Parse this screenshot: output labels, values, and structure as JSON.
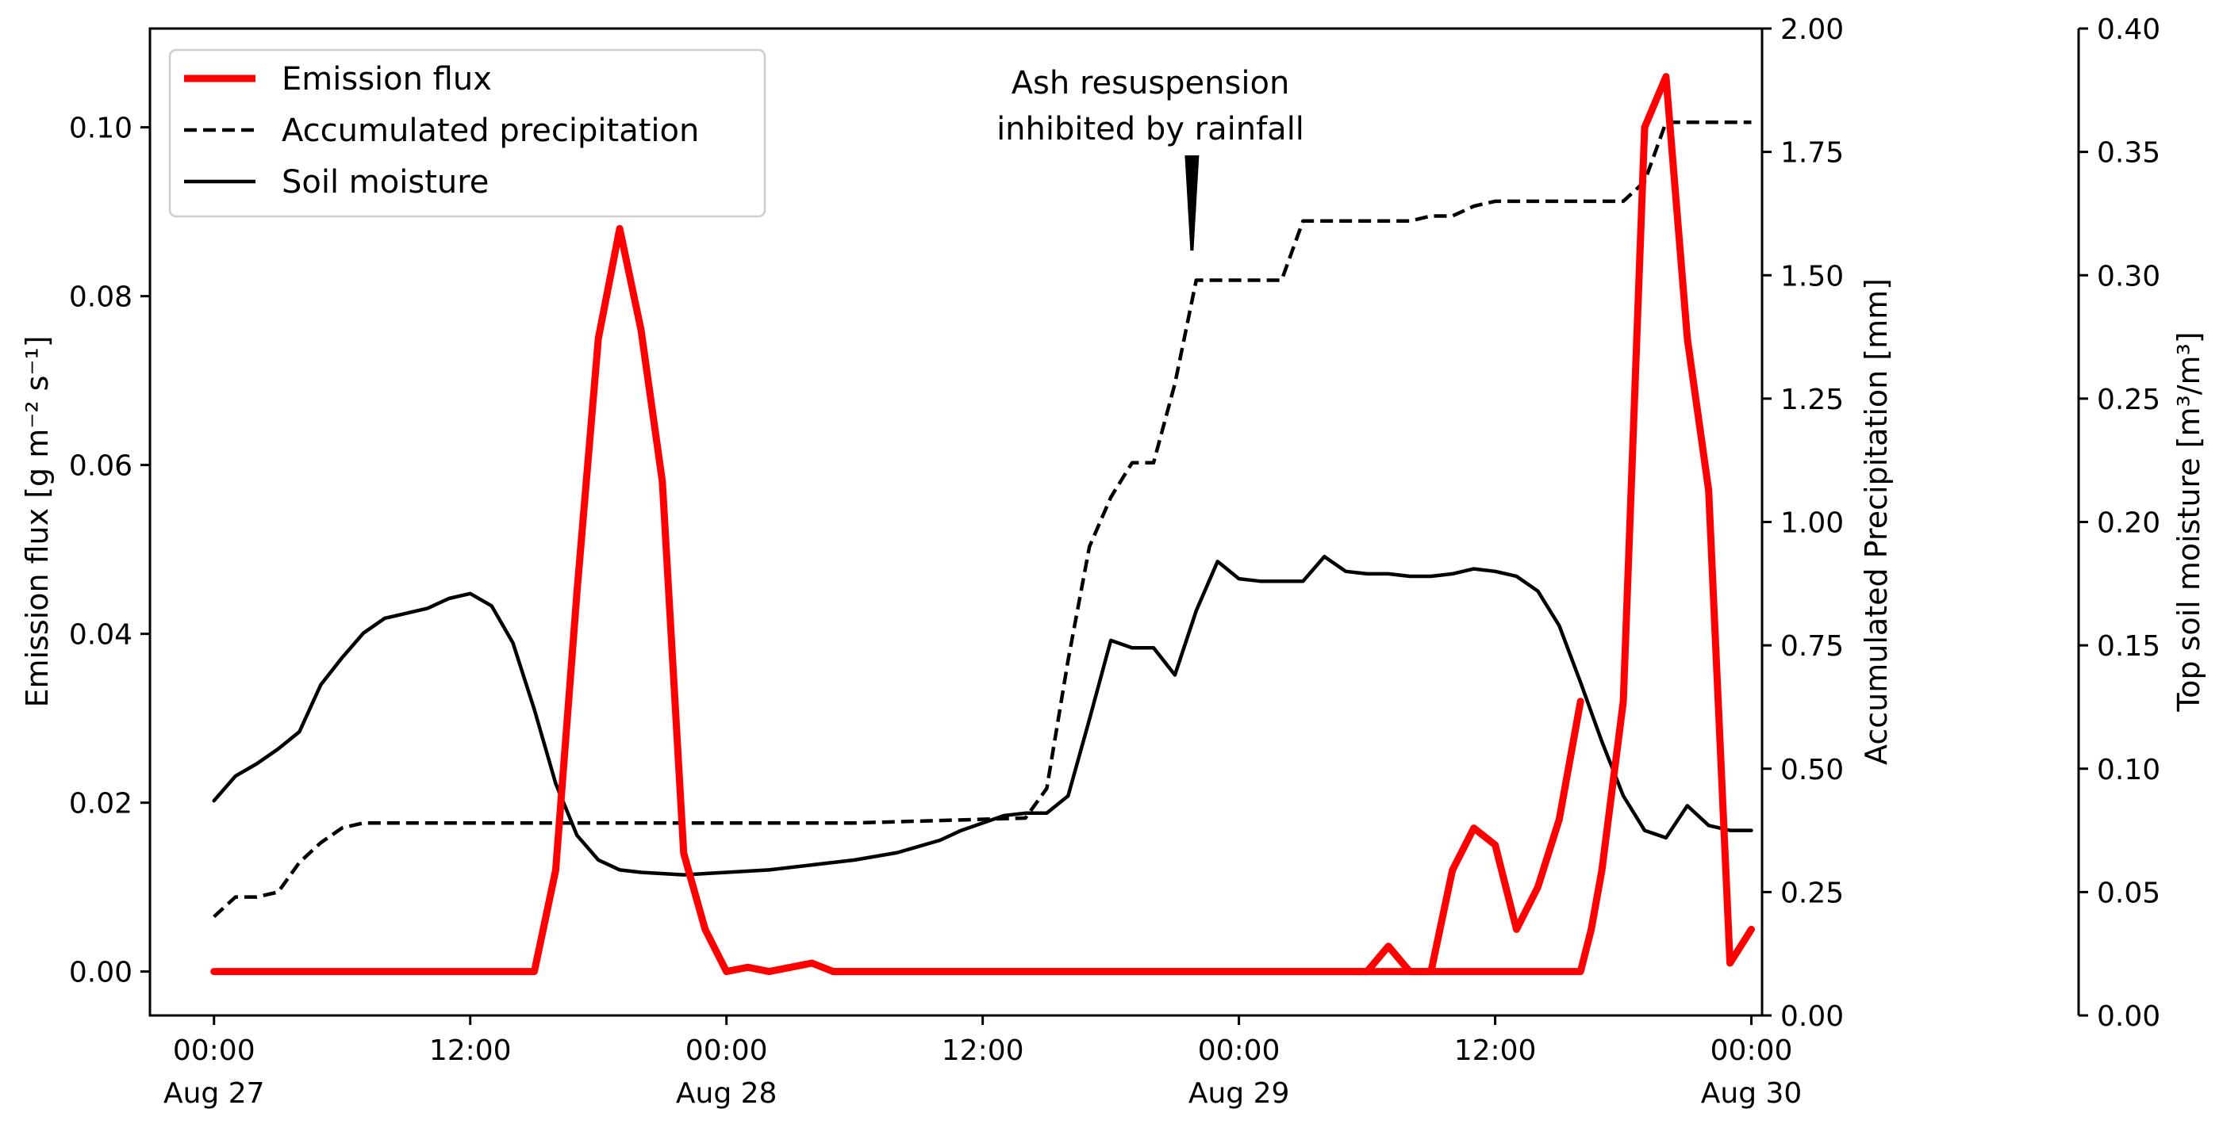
{
  "chart_data": {
    "type": "line",
    "x_unit": "hours since 00:00 Aug 27",
    "legend": {
      "position": "upper-left",
      "entries": [
        "Emission flux",
        "Accumulated precipitation",
        "Soil moisture"
      ]
    },
    "annotation": {
      "lines": [
        "Ash resuspension",
        "inhibited by rainfall"
      ],
      "x": 45.8,
      "y_precip": 1.55
    },
    "x_axis": {
      "xlim": [
        -3,
        72.5
      ],
      "ticks": [
        {
          "x": 0,
          "time": "00:00",
          "date": "Aug 27"
        },
        {
          "x": 12,
          "time": "12:00",
          "date": ""
        },
        {
          "x": 24,
          "time": "00:00",
          "date": "Aug 28"
        },
        {
          "x": 36,
          "time": "12:00",
          "date": ""
        },
        {
          "x": 48,
          "time": "00:00",
          "date": "Aug 29"
        },
        {
          "x": 60,
          "time": "12:00",
          "date": ""
        },
        {
          "x": 72,
          "time": "00:00",
          "date": "Aug 30"
        }
      ]
    },
    "axes": {
      "left": {
        "label": "Emission flux [g m⁻² s⁻¹]",
        "ylim": [
          -0.0052,
          0.1117
        ],
        "ticks": [
          0.0,
          0.02,
          0.04,
          0.06,
          0.08,
          0.1
        ],
        "tick_labels": [
          "0.00",
          "0.02",
          "0.04",
          "0.06",
          "0.08",
          "0.10"
        ]
      },
      "right1": {
        "label": "Accumulated Precipitation [mm]",
        "ylim": [
          0.0,
          2.0
        ],
        "ticks": [
          0.0,
          0.25,
          0.5,
          0.75,
          1.0,
          1.25,
          1.5,
          1.75,
          2.0
        ],
        "tick_labels": [
          "0.00",
          "0.25",
          "0.50",
          "0.75",
          "1.00",
          "1.25",
          "1.50",
          "1.75",
          "2.00"
        ]
      },
      "right2": {
        "label": "Top soil moisture [m³/m³]",
        "ylim": [
          0.0,
          0.4
        ],
        "ticks": [
          0.0,
          0.05,
          0.1,
          0.15,
          0.2,
          0.25,
          0.3,
          0.35,
          0.4
        ],
        "tick_labels": [
          "0.00",
          "0.05",
          "0.10",
          "0.15",
          "0.20",
          "0.25",
          "0.30",
          "0.35",
          "0.40"
        ]
      }
    },
    "series": [
      {
        "name": "Emission flux",
        "axis": "left",
        "color": "#ff0000",
        "style": "solid-thick",
        "x": [
          0,
          15,
          16,
          17,
          18,
          19,
          20,
          21,
          22,
          23,
          24,
          25,
          26,
          27,
          28,
          29,
          64,
          64.5,
          65,
          66,
          67,
          68,
          69,
          70,
          71,
          72
        ],
        "y": [
          0,
          0,
          0.012,
          0.045,
          0.075,
          0.088,
          0.076,
          0.058,
          0.014,
          0.005,
          0.0,
          0.0005,
          0,
          0.0005,
          0.001,
          0,
          0,
          0.005,
          0.012,
          0.032,
          0.1,
          0.106,
          0.075,
          0.057,
          0.001,
          0.005
        ]
      },
      {
        "name": "Emission flux (mid segment)",
        "axis": "left",
        "color": "#ff0000",
        "style": "solid-thick",
        "x": [
          29,
          45,
          54,
          55,
          56,
          57,
          58,
          59,
          60,
          61,
          62,
          63,
          64
        ],
        "y": [
          0,
          0,
          0,
          0.003,
          0,
          0,
          0.012,
          0.017,
          0.015,
          0.005,
          0.01,
          0.018,
          0.032
        ]
      },
      {
        "name": "Accumulated precipitation",
        "axis": "right1",
        "color": "#000000",
        "style": "dashed",
        "x": [
          0,
          1,
          2,
          3,
          4,
          5,
          6,
          7,
          8,
          9,
          10,
          11,
          12,
          20,
          30,
          38,
          39,
          40,
          41,
          42,
          43,
          44,
          45,
          46,
          47,
          48,
          49,
          50,
          51,
          52,
          53,
          54,
          55,
          56,
          57,
          58,
          59,
          60,
          61,
          62,
          63,
          64,
          65,
          66,
          67,
          68,
          69,
          70,
          71,
          72
        ],
        "y": [
          0.2,
          0.24,
          0.24,
          0.25,
          0.31,
          0.35,
          0.38,
          0.39,
          0.39,
          0.39,
          0.39,
          0.39,
          0.39,
          0.39,
          0.39,
          0.4,
          0.46,
          0.72,
          0.95,
          1.05,
          1.12,
          1.12,
          1.28,
          1.49,
          1.49,
          1.49,
          1.49,
          1.49,
          1.61,
          1.61,
          1.61,
          1.61,
          1.61,
          1.61,
          1.62,
          1.62,
          1.64,
          1.65,
          1.65,
          1.65,
          1.65,
          1.65,
          1.65,
          1.65,
          1.69,
          1.81,
          1.81,
          1.81,
          1.81,
          1.81
        ]
      },
      {
        "name": "Soil moisture",
        "axis": "right2",
        "color": "#000000",
        "style": "solid",
        "x": [
          0,
          1,
          2,
          3,
          4,
          5,
          6,
          7,
          8,
          9,
          10,
          11,
          12,
          13,
          14,
          15,
          16,
          17,
          18,
          19,
          20,
          22,
          24,
          26,
          28,
          30,
          32,
          34,
          35,
          36,
          37,
          38,
          39,
          40,
          41,
          42,
          43,
          44,
          45,
          46,
          47,
          48,
          49,
          50,
          51,
          52,
          53,
          54,
          55,
          56,
          57,
          58,
          59,
          60,
          61,
          62,
          63,
          64,
          65,
          66,
          67,
          68,
          69,
          70,
          71,
          72
        ],
        "y": [
          0.087,
          0.097,
          0.102,
          0.108,
          0.115,
          0.134,
          0.145,
          0.155,
          0.161,
          0.163,
          0.165,
          0.169,
          0.171,
          0.166,
          0.151,
          0.124,
          0.094,
          0.073,
          0.063,
          0.059,
          0.058,
          0.057,
          0.058,
          0.059,
          0.061,
          0.063,
          0.066,
          0.071,
          0.075,
          0.078,
          0.081,
          0.082,
          0.082,
          0.089,
          0.12,
          0.152,
          0.149,
          0.149,
          0.138,
          0.164,
          0.184,
          0.177,
          0.176,
          0.176,
          0.176,
          0.186,
          0.18,
          0.179,
          0.179,
          0.178,
          0.178,
          0.179,
          0.181,
          0.18,
          0.178,
          0.172,
          0.158,
          0.135,
          0.111,
          0.089,
          0.075,
          0.072,
          0.085,
          0.077,
          0.075,
          0.075
        ]
      }
    ]
  }
}
